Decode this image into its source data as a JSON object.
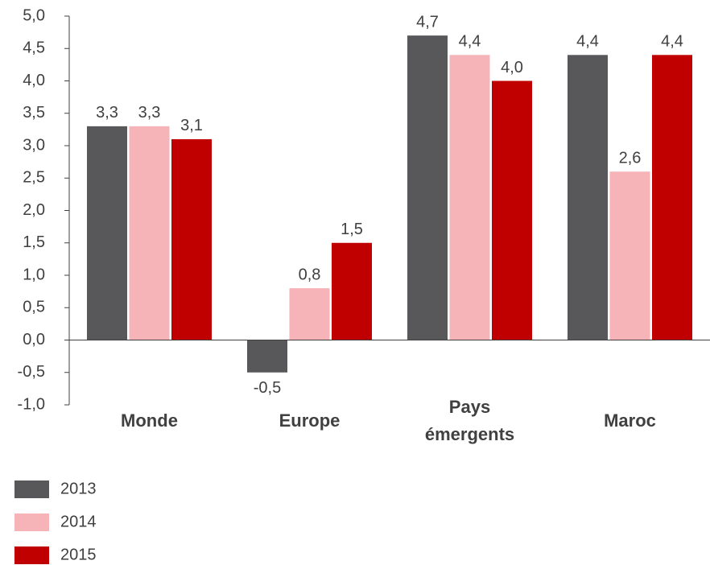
{
  "chart_data": {
    "type": "bar",
    "categories": [
      "Monde",
      "Europe",
      "Pays émergents",
      "Maroc"
    ],
    "series": [
      {
        "name": "2013",
        "color": "#58585a",
        "values": [
          3.3,
          -0.5,
          4.7,
          4.4
        ],
        "value_labels": [
          "3,3",
          "-0,5",
          "4,7",
          "4,4"
        ]
      },
      {
        "name": "2014",
        "color": "#f6b3b8",
        "values": [
          3.3,
          0.8,
          4.4,
          2.6
        ],
        "value_labels": [
          "3,3",
          "0,8",
          "4,4",
          "2,6"
        ]
      },
      {
        "name": "2015",
        "color": "#c00000",
        "values": [
          3.1,
          1.5,
          4.0,
          4.4
        ],
        "value_labels": [
          "3,1",
          "1,5",
          "4,0",
          "4,4"
        ]
      }
    ],
    "ylim": [
      -1,
      5
    ],
    "yticks": [
      {
        "value": -1,
        "label": "-1,0"
      },
      {
        "value": -0.5,
        "label": "-0,5"
      },
      {
        "value": 0,
        "label": "0,0"
      },
      {
        "value": 0.5,
        "label": "0,5"
      },
      {
        "value": 1,
        "label": "1,0"
      },
      {
        "value": 1.5,
        "label": "1,5"
      },
      {
        "value": 2,
        "label": "2,0"
      },
      {
        "value": 2.5,
        "label": "2,5"
      },
      {
        "value": 3,
        "label": "3,0"
      },
      {
        "value": 3.5,
        "label": "3,5"
      },
      {
        "value": 4,
        "label": "4,0"
      },
      {
        "value": 4.5,
        "label": "4,5"
      },
      {
        "value": 5,
        "label": "5,0"
      }
    ],
    "grid": false,
    "legend": "bottom-left"
  }
}
